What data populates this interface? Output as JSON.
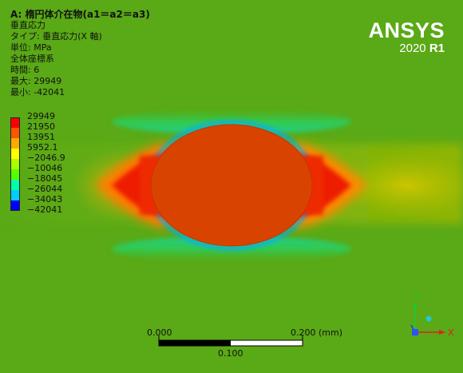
{
  "info": {
    "title": "A: 楕円体介在物(a1＝a2＝a3)",
    "result": "垂直応力",
    "type": "タイプ: 垂直応力(X 軸)",
    "unit": "単位: MPa",
    "coord": "全体座標系",
    "time": "時間: 6",
    "max": "最大: 29949",
    "min": "最小: -42041"
  },
  "legend": {
    "values": [
      "29949",
      "21950",
      "13951",
      "5952.1",
      "−2046.9",
      "−10046",
      "−18045",
      "−26044",
      "−34043",
      "−42041"
    ],
    "colors": [
      "#ff0000",
      "#ff5500",
      "#ffaa00",
      "#ffff00",
      "#aaff00",
      "#55ff00",
      "#00ffaa",
      "#00ccff",
      "#0055ff",
      "#0000ff"
    ]
  },
  "logo": {
    "brand": "ANSYS",
    "year": "2020",
    "release": "R1"
  },
  "scalebar": {
    "start": "0.000",
    "end": "0.200 (mm)",
    "mid": "0.100"
  },
  "triad": {
    "x": "X",
    "y": "Y"
  }
}
